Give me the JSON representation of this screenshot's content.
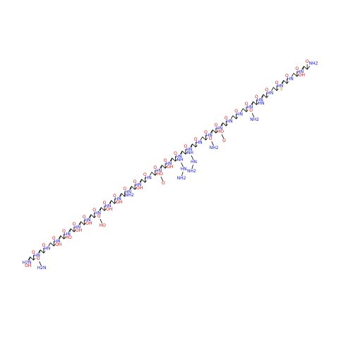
{
  "molecule": {
    "residues": [
      {
        "n": "H2N",
        "o": "O",
        "side": [
          "OH"
        ]
      },
      {
        "n": "HN",
        "o": "O",
        "side": [
          "O",
          "H2N"
        ]
      },
      {
        "n": "HN",
        "o": "O",
        "side": []
      },
      {
        "n": "HN",
        "o": "O",
        "side": [
          "OH"
        ]
      },
      {
        "n": "HN",
        "o": "O",
        "side": [
          "HO"
        ]
      },
      {
        "n": "HN",
        "o": "O",
        "side": [
          "OH"
        ]
      },
      {
        "n": "HN",
        "o": "O",
        "side": [
          "OH"
        ]
      },
      {
        "n": "HN",
        "o": "O",
        "side": [
          "O",
          "HO"
        ]
      },
      {
        "n": "HN",
        "o": "O",
        "side": [
          "OH"
        ]
      },
      {
        "n": "HN",
        "o": "O",
        "side": [
          "OH"
        ]
      },
      {
        "n": "HN",
        "o": "O",
        "side": [
          "NH2"
        ]
      },
      {
        "n": "HN",
        "o": "O",
        "side": [
          "OH"
        ]
      },
      {
        "n": "HN",
        "o": "O",
        "side": []
      },
      {
        "n": "HN",
        "o": "O",
        "side": [
          "HO",
          "O"
        ]
      },
      {
        "n": "HN",
        "o": "O",
        "side": [
          "OH"
        ]
      },
      {
        "n": "HN",
        "o": "O",
        "side": [
          "NH",
          "HN",
          "NH2"
        ]
      },
      {
        "n": "HN",
        "o": "O",
        "side": [
          "NH",
          "HN",
          "NH2"
        ]
      },
      {
        "n": "HN",
        "o": "O",
        "side": []
      },
      {
        "n": "HN",
        "o": "O",
        "side": [
          "O",
          "NH2"
        ]
      },
      {
        "n": "HN",
        "o": "O",
        "side": [
          "HO",
          "O"
        ]
      },
      {
        "n": "HN",
        "o": "O",
        "side": []
      },
      {
        "n": "HN",
        "o": "O",
        "side": []
      },
      {
        "n": "HN",
        "o": "O",
        "side": [
          "O",
          "NH2"
        ]
      },
      {
        "n": "HN",
        "o": "O",
        "side": [
          "HN"
        ]
      },
      {
        "n": "HN",
        "o": "O",
        "side": []
      },
      {
        "n": "HN",
        "o": "O",
        "side": [
          "S"
        ]
      },
      {
        "n": "HN",
        "o": "O",
        "side": []
      },
      {
        "n": "HN",
        "o": "O",
        "side": [
          "OH"
        ]
      }
    ],
    "terminal": "NH2"
  }
}
